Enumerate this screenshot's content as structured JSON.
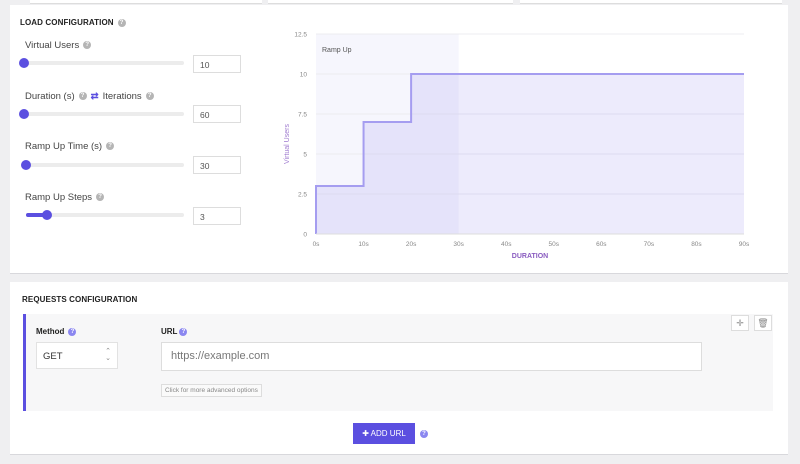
{
  "load": {
    "title": "LOAD CONFIGURATION",
    "fields": [
      {
        "label": "Virtual Users",
        "value": "10",
        "slider": 0.0
      },
      {
        "label": "Duration (s)",
        "alt_label": "Iterations",
        "value": "60",
        "slider": 0.0
      },
      {
        "label": "Ramp Up Time (s)",
        "value": "30",
        "slider": 0.0
      },
      {
        "label": "Ramp Up Steps",
        "value": "3",
        "slider": 0.13
      }
    ]
  },
  "chart_data": {
    "type": "area",
    "step": true,
    "xlabel": "DURATION",
    "ylabel": "Virtual Users",
    "x_ticks": [
      "0s",
      "10s",
      "20s",
      "30s",
      "40s",
      "50s",
      "60s",
      "70s",
      "80s",
      "90s"
    ],
    "y_ticks": [
      "0",
      "2.5",
      "5",
      "7.5",
      "10",
      "12.5"
    ],
    "xlim": [
      0,
      90
    ],
    "ylim": [
      0,
      12.5
    ],
    "points": [
      [
        0,
        0
      ],
      [
        0,
        3
      ],
      [
        10,
        3
      ],
      [
        10,
        7
      ],
      [
        20,
        7
      ],
      [
        20,
        10
      ],
      [
        90,
        10
      ]
    ],
    "annotation": {
      "label": "Ramp Up",
      "x_range": [
        0,
        30
      ]
    },
    "color": "#a59df0",
    "grid": true
  },
  "requests": {
    "title": "REQUESTS CONFIGURATION",
    "method_label": "Method",
    "method_value": "GET",
    "url_label": "URL",
    "url_placeholder": "https://example.com",
    "advanced": "Click for more advanced options",
    "add_label": "ADD URL"
  },
  "colors": {
    "accent": "#5b4fe0"
  }
}
